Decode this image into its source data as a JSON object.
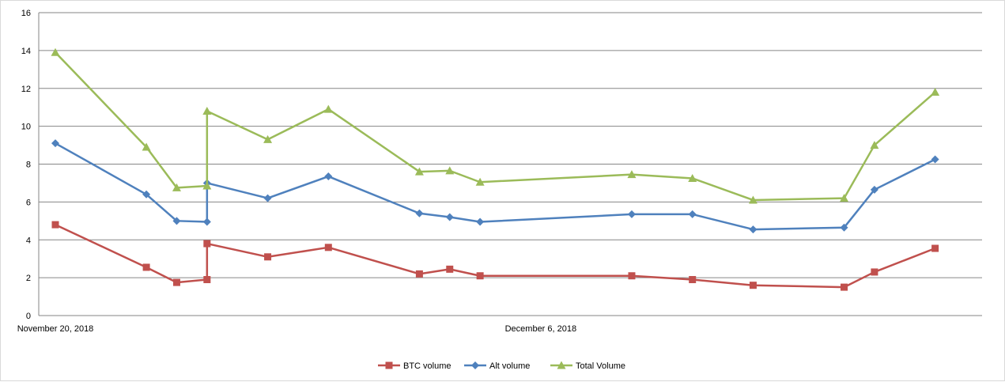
{
  "chart_data": {
    "type": "line",
    "title": "",
    "xlabel": "",
    "ylabel": "",
    "ylim": [
      0,
      16
    ],
    "yticks": [
      0,
      2,
      4,
      6,
      8,
      10,
      12,
      14,
      16
    ],
    "grid": true,
    "legend_position": "bottom",
    "x_tick_labels": [
      {
        "label": "November 20, 2018",
        "day": 0
      },
      {
        "label": "December 6, 2018",
        "day": 16
      }
    ],
    "x_range_days": [
      0,
      30
    ],
    "x_days": [
      0,
      3,
      4,
      5,
      5,
      7,
      9,
      12,
      13,
      14,
      19,
      21,
      23,
      26,
      27,
      29
    ],
    "series": [
      {
        "name": "BTC volume",
        "color": "#c0504d",
        "marker": "square",
        "values": [
          4.8,
          2.55,
          1.75,
          1.9,
          3.8,
          3.1,
          3.6,
          2.2,
          2.45,
          2.1,
          2.1,
          1.9,
          1.6,
          1.5,
          2.3,
          3.55
        ]
      },
      {
        "name": "Alt volume",
        "color": "#4f81bd",
        "marker": "diamond",
        "values": [
          9.1,
          6.4,
          5.0,
          4.95,
          7.0,
          6.2,
          7.35,
          5.4,
          5.2,
          4.95,
          5.35,
          5.35,
          4.55,
          4.65,
          6.65,
          8.25
        ]
      },
      {
        "name": "Total Volume",
        "color": "#9bbb59",
        "marker": "triangle",
        "values": [
          13.9,
          8.9,
          6.75,
          6.85,
          10.8,
          9.3,
          10.9,
          7.6,
          7.65,
          7.05,
          7.45,
          7.25,
          6.1,
          6.2,
          9.0,
          11.8
        ]
      }
    ]
  }
}
